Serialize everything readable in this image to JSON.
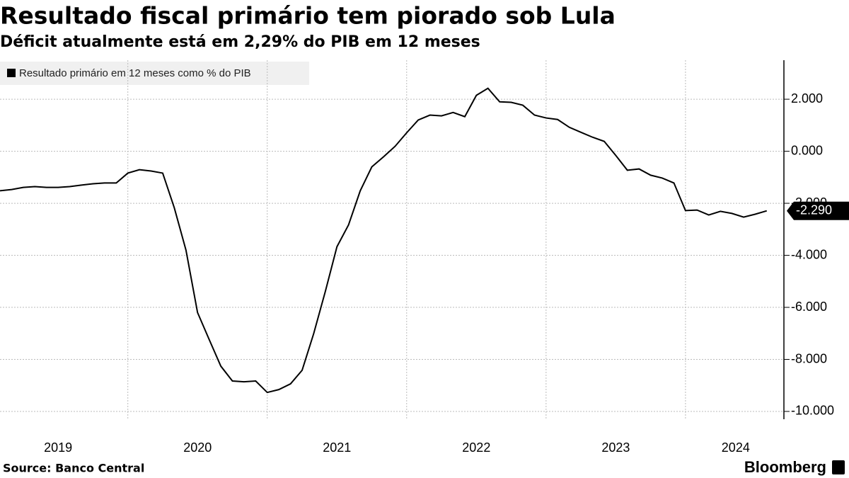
{
  "chart_data": {
    "type": "line",
    "title": "Resultado fiscal primário tem piorado sob Lula",
    "subtitle": "Déficit atualmente está em 2,29% do PIB em 12 meses",
    "source": "Source:  Banco Central",
    "brand": "Bloomberg",
    "x": [
      2019.083,
      2019.167,
      2019.25,
      2019.333,
      2019.417,
      2019.5,
      2019.583,
      2019.667,
      2019.75,
      2019.833,
      2019.917,
      2020.0,
      2020.083,
      2020.167,
      2020.25,
      2020.333,
      2020.417,
      2020.5,
      2020.583,
      2020.667,
      2020.75,
      2020.833,
      2020.917,
      2021.0,
      2021.083,
      2021.167,
      2021.25,
      2021.333,
      2021.417,
      2021.5,
      2021.583,
      2021.667,
      2021.75,
      2021.833,
      2021.917,
      2022.0,
      2022.083,
      2022.167,
      2022.25,
      2022.333,
      2022.417,
      2022.5,
      2022.583,
      2022.667,
      2022.75,
      2022.833,
      2022.917,
      2023.0,
      2023.083,
      2023.167,
      2023.25,
      2023.333,
      2023.417,
      2023.5,
      2023.583,
      2023.667,
      2023.75,
      2023.833,
      2023.917,
      2024.0,
      2024.083,
      2024.167,
      2024.25,
      2024.333,
      2024.417,
      2024.5,
      2024.583
    ],
    "series": [
      {
        "name": "Resultado primário em 12 meses como % do PIB",
        "color": "#000000",
        "values": [
          -1.52,
          -1.47,
          -1.39,
          -1.36,
          -1.39,
          -1.39,
          -1.36,
          -1.3,
          -1.25,
          -1.22,
          -1.22,
          -0.84,
          -0.71,
          -0.76,
          -0.84,
          -2.17,
          -3.8,
          -6.2,
          -7.23,
          -8.26,
          -8.83,
          -8.86,
          -8.83,
          -9.27,
          -9.16,
          -8.94,
          -8.42,
          -7.01,
          -5.38,
          -3.67,
          -2.83,
          -1.52,
          -0.6,
          -0.22,
          0.19,
          0.71,
          1.2,
          1.39,
          1.36,
          1.49,
          1.33,
          2.15,
          2.42,
          1.9,
          1.88,
          1.77,
          1.39,
          1.28,
          1.22,
          0.92,
          0.73,
          0.54,
          0.38,
          -0.16,
          -0.73,
          -0.68,
          -0.92,
          -1.03,
          -1.22,
          -2.28,
          -2.26,
          -2.45,
          -2.31,
          -2.39,
          -2.53,
          -2.42,
          -2.29
        ],
        "end_label": "-2.290"
      }
    ],
    "xlim": [
      2019.083,
      2024.706
    ],
    "xgrid": [
      2020,
      2021,
      2022,
      2023,
      2024
    ],
    "xticks": [
      {
        "value": 2019.5,
        "label": "2019"
      },
      {
        "value": 2020.5,
        "label": "2020"
      },
      {
        "value": 2021.5,
        "label": "2021"
      },
      {
        "value": 2022.5,
        "label": "2022"
      },
      {
        "value": 2023.5,
        "label": "2023"
      },
      {
        "value": 2024.36,
        "label": "2024"
      }
    ],
    "ylim": [
      -10.3,
      3.5
    ],
    "yticks": [
      {
        "value": 2,
        "label": "2.000"
      },
      {
        "value": 0,
        "label": "0.000"
      },
      {
        "value": -2,
        "label": "-2.000"
      },
      {
        "value": -4,
        "label": "-4.000"
      },
      {
        "value": -6,
        "label": "-6.000"
      },
      {
        "value": -8,
        "label": "-8.000"
      },
      {
        "value": -10,
        "label": "-10.000"
      }
    ],
    "grid": true
  }
}
